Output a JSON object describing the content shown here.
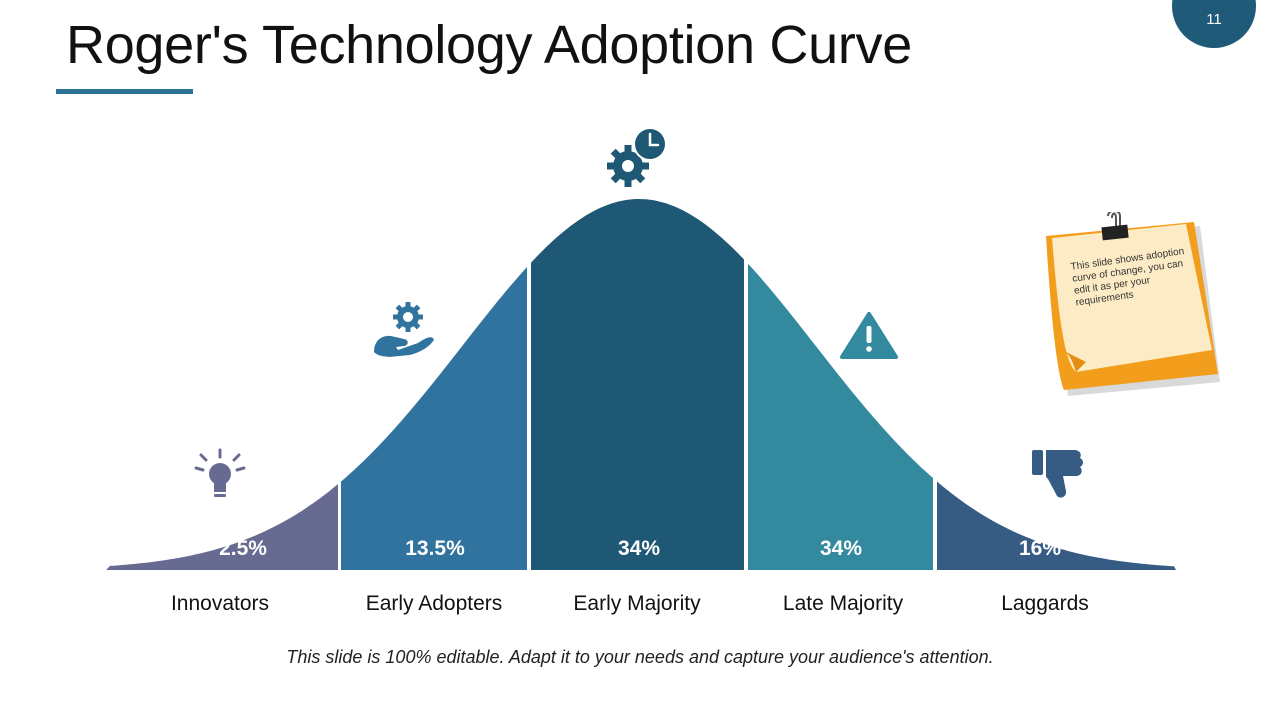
{
  "slide": {
    "title": "Roger's Technology Adoption Curve",
    "page_number": "11",
    "footer": "This slide is 100% editable. Adapt it to your needs and capture your audience's attention.",
    "note": "This slide shows adoption curve of change, you can edit it as per your requirements"
  },
  "colors": {
    "accent": "#1f5a78",
    "underline": "#2e7396"
  },
  "segments": [
    {
      "label": "Innovators",
      "percent": "2.5%",
      "color": "#676b91",
      "icon": "lightbulb-icon"
    },
    {
      "label": "Early Adopters",
      "percent": "13.5%",
      "color": "#30739f",
      "icon": "gear-in-hand-icon"
    },
    {
      "label": "Early Majority",
      "percent": "34%",
      "color": "#1f5874",
      "icon": "gear-clock-icon"
    },
    {
      "label": "Late Majority",
      "percent": "34%",
      "color": "#338a9e",
      "icon": "warning-icon"
    },
    {
      "label": "Laggards",
      "percent": "16%",
      "color": "#375c83",
      "icon": "thumbs-down-icon"
    }
  ]
}
